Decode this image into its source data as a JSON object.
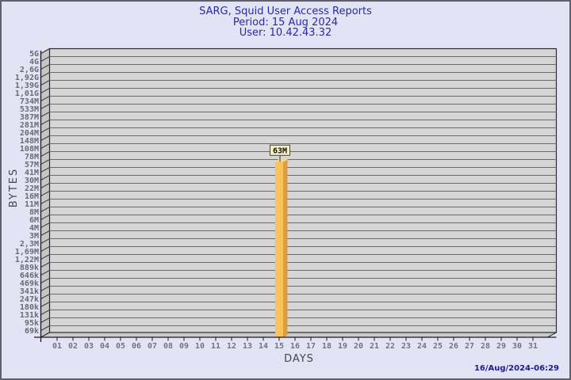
{
  "header": {
    "title": "SARG, Squid User Access Reports",
    "period": "Period: 15 Aug 2024",
    "user": "User: 10.42.43.32"
  },
  "footer": {
    "generated": "16/Aug/2024-06:29"
  },
  "chart_data": {
    "type": "bar",
    "title": "SARG, Squid User Access Reports",
    "subtitle": "Period: 15 Aug 2024",
    "user_line": "User: 10.42.43.32",
    "xlabel": "DAYS",
    "ylabel": "BYTES",
    "y_scale": "log",
    "grid": "horizontal",
    "x_categories": [
      "01",
      "02",
      "03",
      "04",
      "05",
      "06",
      "07",
      "08",
      "09",
      "10",
      "11",
      "12",
      "13",
      "14",
      "15",
      "16",
      "17",
      "18",
      "19",
      "20",
      "21",
      "22",
      "23",
      "24",
      "25",
      "26",
      "27",
      "28",
      "29",
      "30",
      "31"
    ],
    "ytick_labels": [
      "5G",
      "4G",
      "2,6G",
      "1,92G",
      "1,39G",
      "1,01G",
      "734M",
      "533M",
      "387M",
      "281M",
      "204M",
      "148M",
      "108M",
      "78M",
      "57M",
      "41M",
      "30M",
      "22M",
      "16M",
      "11M",
      "8M",
      "6M",
      "4M",
      "3M",
      "2,3M",
      "1,69M",
      "1,22M",
      "889k",
      "646k",
      "469k",
      "341k",
      "247k",
      "180k",
      "131k",
      "95k",
      "69k"
    ],
    "bars": [
      {
        "day": "15",
        "label": "63M",
        "bytes": 63000000
      }
    ],
    "colors": {
      "page_bg": "#e3e3f6",
      "plot_bg": "#d6d6d6",
      "grid_line": "#6a6a6a",
      "wall": "#c6c6c9",
      "floor": "#cbcbce",
      "outline": "#2b2b2b",
      "axis": "#1a1a1a",
      "bar_front": "#fcc25e",
      "bar_side": "#dc9f3c",
      "bar_top": "#f5d98f",
      "bar_label_bg": "#f2efc4",
      "bar_label_border": "#494930",
      "title_text": "#2929a3",
      "footer_text": "#1b1b9b"
    }
  }
}
